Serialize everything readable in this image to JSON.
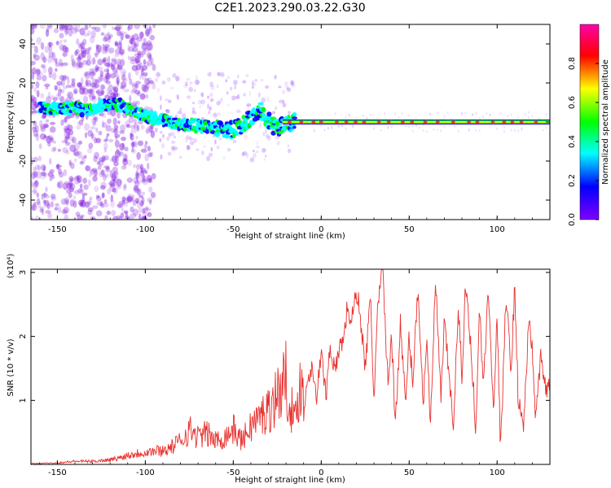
{
  "title": "C2E1.2023.290.03.22.G30",
  "chart_data": [
    {
      "type": "heatmap",
      "xlabel": "Height of straight line (km)",
      "ylabel": "Frequency (Hz)",
      "xlim": [
        -165,
        130
      ],
      "ylim": [
        -50,
        50
      ],
      "x_ticks": [
        -150,
        -100,
        -50,
        0,
        50,
        100
      ],
      "y_ticks": [
        -40,
        -20,
        0,
        20,
        40
      ],
      "colorbar": {
        "label": "Normalized spectral amplitude",
        "range": [
          0,
          1
        ],
        "ticks": [
          0.0,
          0.2,
          0.4,
          0.6,
          0.8
        ],
        "colormap": [
          "#8000ff",
          "#0000ff",
          "#00ffff",
          "#00ff00",
          "#ffff00",
          "#ff0000",
          "#ff00aa"
        ]
      },
      "ridge": {
        "x": [
          -160,
          -150,
          -140,
          -130,
          -125,
          -120,
          -115,
          -110,
          -105,
          -100,
          -90,
          -80,
          -70,
          -60,
          -50,
          -45,
          -40,
          -35,
          -30,
          -25,
          -20,
          -10,
          0,
          20,
          50,
          80,
          110,
          130
        ],
        "freq": [
          7,
          7,
          7,
          6,
          8,
          9,
          9,
          7,
          5,
          3,
          1,
          -1,
          -2,
          -3,
          -4,
          -2,
          2,
          6,
          1,
          -4,
          0,
          0,
          1,
          0,
          0,
          0,
          0,
          0
        ]
      }
    },
    {
      "type": "line",
      "xlabel": "Height of straight line (km)",
      "ylabel": "SNR (10 * v/v)",
      "y_scale_label": "(x10⁴)",
      "xlim": [
        -165,
        130
      ],
      "ylim": [
        0,
        3.05
      ],
      "x_ticks": [
        -150,
        -100,
        -50,
        0,
        50,
        100
      ],
      "y_ticks": [
        1,
        2,
        3
      ],
      "color": "#e8312e",
      "series": [
        {
          "x": [
            -165,
            -150,
            -140,
            -130,
            -120,
            -115,
            -110,
            -100,
            -90,
            -85,
            -80,
            -75,
            -70,
            -65,
            -60,
            -55,
            -50,
            -45,
            -40,
            -35,
            -30,
            -25,
            -20,
            -15,
            -12,
            -10,
            -8,
            -5,
            -3,
            0,
            3,
            5,
            8,
            10,
            13,
            15,
            17,
            20,
            22,
            25,
            28,
            30,
            32,
            35,
            38,
            40,
            42,
            45,
            48,
            50,
            52,
            55,
            58,
            60,
            62,
            65,
            68,
            70,
            72,
            75,
            78,
            80,
            82,
            85,
            88,
            90,
            92,
            95,
            98,
            100,
            102,
            105,
            108,
            110,
            112,
            115,
            118,
            120,
            122,
            125,
            128,
            130
          ],
          "values": [
            0.01,
            0.02,
            0.04,
            0.04,
            0.06,
            0.08,
            0.12,
            0.16,
            0.18,
            0.22,
            0.3,
            0.45,
            0.35,
            0.4,
            0.3,
            0.35,
            0.45,
            0.3,
            0.5,
            0.6,
            0.7,
            0.9,
            1.1,
            0.5,
            1.1,
            0.8,
            1.3,
            1.6,
            1.0,
            1.7,
            1.1,
            1.9,
            1.4,
            1.8,
            2.0,
            2.5,
            2.2,
            2.7,
            2.4,
            1.5,
            2.6,
            1.0,
            2.4,
            3.05,
            1.2,
            2.1,
            0.6,
            2.2,
            0.9,
            2.0,
            1.3,
            2.8,
            0.9,
            2.1,
            0.5,
            2.9,
            1.0,
            2.2,
            1.6,
            0.6,
            2.4,
            1.4,
            2.8,
            1.9,
            0.5,
            2.5,
            1.2,
            2.7,
            0.9,
            2.3,
            0.2,
            2.6,
            1.5,
            2.8,
            1.0,
            0.6,
            2.2,
            1.8,
            0.7,
            1.7,
            1.1,
            1.2
          ]
        }
      ]
    }
  ]
}
